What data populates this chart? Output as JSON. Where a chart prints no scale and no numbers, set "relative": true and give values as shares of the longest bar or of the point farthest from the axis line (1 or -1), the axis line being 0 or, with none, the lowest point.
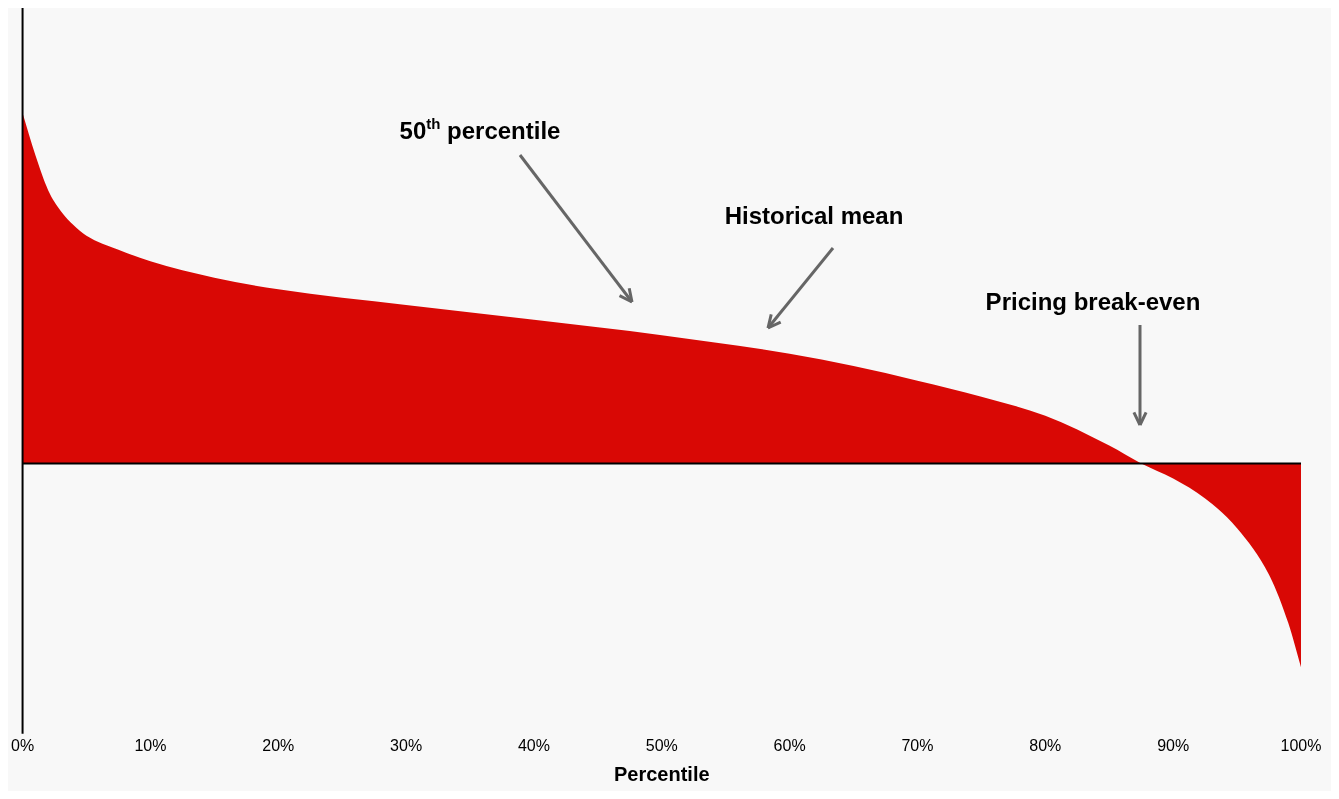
{
  "chart_data": {
    "type": "area",
    "relative": true,
    "xlabel": "Percentile",
    "x": [
      0,
      1,
      2,
      3,
      4,
      5,
      7.5,
      10,
      15,
      20,
      30,
      40,
      50,
      60,
      65,
      70,
      75,
      80,
      85,
      87.5,
      90,
      92.5,
      95,
      97.5,
      99,
      100
    ],
    "series": [
      {
        "color": "#d90805",
        "values": [
          1.0,
          0.88,
          0.78,
          0.72,
          0.68,
          0.65,
          0.61,
          0.577,
          0.53,
          0.497,
          0.452,
          0.41,
          0.366,
          0.313,
          0.278,
          0.236,
          0.19,
          0.136,
          0.051,
          0,
          -0.043,
          -0.1,
          -0.185,
          -0.318,
          -0.455,
          -0.582
        ]
      }
    ],
    "xlim": [
      0,
      100
    ],
    "xticks": [
      {
        "value": 0,
        "label": "0%"
      },
      {
        "value": 10,
        "label": "10%"
      },
      {
        "value": 20,
        "label": "20%"
      },
      {
        "value": 30,
        "label": "30%"
      },
      {
        "value": 40,
        "label": "40%"
      },
      {
        "value": 50,
        "label": "50%"
      },
      {
        "value": 60,
        "label": "60%"
      },
      {
        "value": 70,
        "label": "70%"
      },
      {
        "value": 80,
        "label": "80%"
      },
      {
        "value": 90,
        "label": "90%"
      },
      {
        "value": 100,
        "label": "100%"
      }
    ],
    "annotations": [
      "50$^{th}$ percentile",
      "Historical mean",
      "Pricing break-even"
    ],
    "grid": false,
    "legend": false
  }
}
